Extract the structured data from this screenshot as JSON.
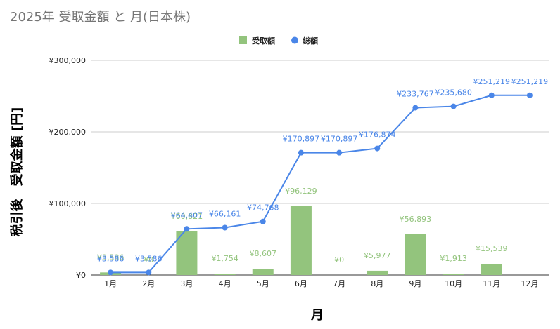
{
  "chart_data": {
    "type": "bar+line",
    "title": "2025年 受取金額 と 月(日本株)",
    "xlabel": "月",
    "ylabel": "税引後　受取金額 [円]",
    "categories": [
      "1月",
      "2月",
      "3月",
      "4月",
      "5月",
      "6月",
      "7月",
      "8月",
      "9月",
      "10月",
      "11月",
      "12月"
    ],
    "ylim": [
      0,
      300000
    ],
    "yticks": [
      0,
      100000,
      200000,
      300000
    ],
    "ytick_labels": [
      "¥0",
      "¥100,000",
      "¥200,000",
      "¥300,000"
    ],
    "legend_position": "top-center",
    "grid": true,
    "series": [
      {
        "name": "受取額",
        "type": "bar",
        "color": "#93c47d",
        "values": [
          3586,
          0,
          60821,
          1754,
          8607,
          96129,
          0,
          5977,
          56893,
          1913,
          15539,
          null
        ],
        "labels": [
          "¥3,586",
          "¥0",
          "¥60,821",
          "¥1,754",
          "¥8,607",
          "¥96,129",
          "¥0",
          "¥5,977",
          "¥56,893",
          "¥1,913",
          "¥15,539",
          ""
        ]
      },
      {
        "name": "総額",
        "type": "line",
        "color": "#4a86e8",
        "values": [
          3586,
          3586,
          64407,
          66161,
          74768,
          170897,
          170897,
          176874,
          233767,
          235680,
          251219,
          251219
        ],
        "labels": [
          "¥3,586",
          "¥3,586",
          "¥64,407",
          "¥66,161",
          "¥74,768",
          "¥170,897",
          "¥170,897",
          "¥176,874",
          "¥233,767",
          "¥235,680",
          "¥251,219",
          "¥251,219"
        ]
      }
    ]
  }
}
